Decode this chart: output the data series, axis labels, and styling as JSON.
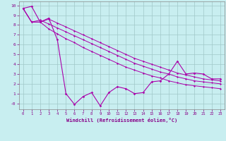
{
  "background_color": "#c8eef0",
  "grid_color": "#a0c8c8",
  "line_color": "#aa00aa",
  "xlim": [
    -0.5,
    23.5
  ],
  "ylim": [
    -0.6,
    10.4
  ],
  "xticks": [
    0,
    1,
    2,
    3,
    4,
    5,
    6,
    7,
    8,
    9,
    10,
    11,
    12,
    13,
    14,
    15,
    16,
    17,
    18,
    19,
    20,
    21,
    22,
    23
  ],
  "yticks": [
    0,
    1,
    2,
    3,
    4,
    5,
    6,
    7,
    8,
    9,
    10
  ],
  "ytick_labels": [
    "-0",
    "1",
    "2",
    "3",
    "4",
    "5",
    "6",
    "7",
    "8",
    "9",
    "10"
  ],
  "xlabel": "Windchill (Refroidissement éolien,°C)",
  "line1_x": [
    0,
    1,
    2,
    3,
    4,
    5,
    6,
    7,
    8,
    9,
    10,
    11,
    12,
    13,
    14,
    15,
    16,
    17,
    18,
    19,
    20,
    21,
    22,
    23
  ],
  "line1_y": [
    9.7,
    9.9,
    8.3,
    8.7,
    6.5,
    1.0,
    -0.1,
    0.7,
    1.1,
    -0.25,
    1.1,
    1.7,
    1.5,
    1.0,
    1.1,
    2.2,
    2.3,
    3.0,
    4.3,
    3.0,
    3.1,
    3.0,
    2.5,
    2.5
  ],
  "line2_x": [
    0,
    1,
    2,
    3,
    4,
    5,
    6,
    7,
    8,
    9,
    10,
    11,
    12,
    13,
    14,
    15,
    16,
    17,
    18,
    19,
    20,
    21,
    22,
    23
  ],
  "line2_y": [
    9.7,
    8.3,
    8.3,
    7.6,
    7.1,
    6.6,
    6.2,
    5.7,
    5.3,
    4.9,
    4.5,
    4.1,
    3.7,
    3.4,
    3.1,
    2.8,
    2.6,
    2.3,
    2.1,
    1.9,
    1.8,
    1.7,
    1.6,
    1.5
  ],
  "line3_x": [
    0,
    1,
    2,
    3,
    4,
    5,
    6,
    7,
    8,
    9,
    10,
    11,
    12,
    13,
    14,
    15,
    16,
    17,
    18,
    19,
    20,
    21,
    22,
    23
  ],
  "line3_y": [
    9.7,
    8.3,
    8.5,
    8.1,
    7.7,
    7.3,
    6.9,
    6.5,
    6.1,
    5.7,
    5.3,
    4.9,
    4.5,
    4.1,
    3.8,
    3.5,
    3.2,
    3.0,
    2.7,
    2.5,
    2.3,
    2.2,
    2.1,
    2.0
  ],
  "line4_x": [
    0,
    1,
    2,
    3,
    4,
    5,
    6,
    7,
    8,
    9,
    10,
    11,
    12,
    13,
    14,
    15,
    16,
    17,
    18,
    19,
    20,
    21,
    22,
    23
  ],
  "line4_y": [
    9.7,
    8.3,
    8.3,
    8.6,
    8.2,
    7.8,
    7.4,
    7.0,
    6.6,
    6.2,
    5.8,
    5.4,
    5.0,
    4.6,
    4.3,
    4.0,
    3.7,
    3.4,
    3.1,
    2.9,
    2.7,
    2.5,
    2.4,
    2.3
  ]
}
